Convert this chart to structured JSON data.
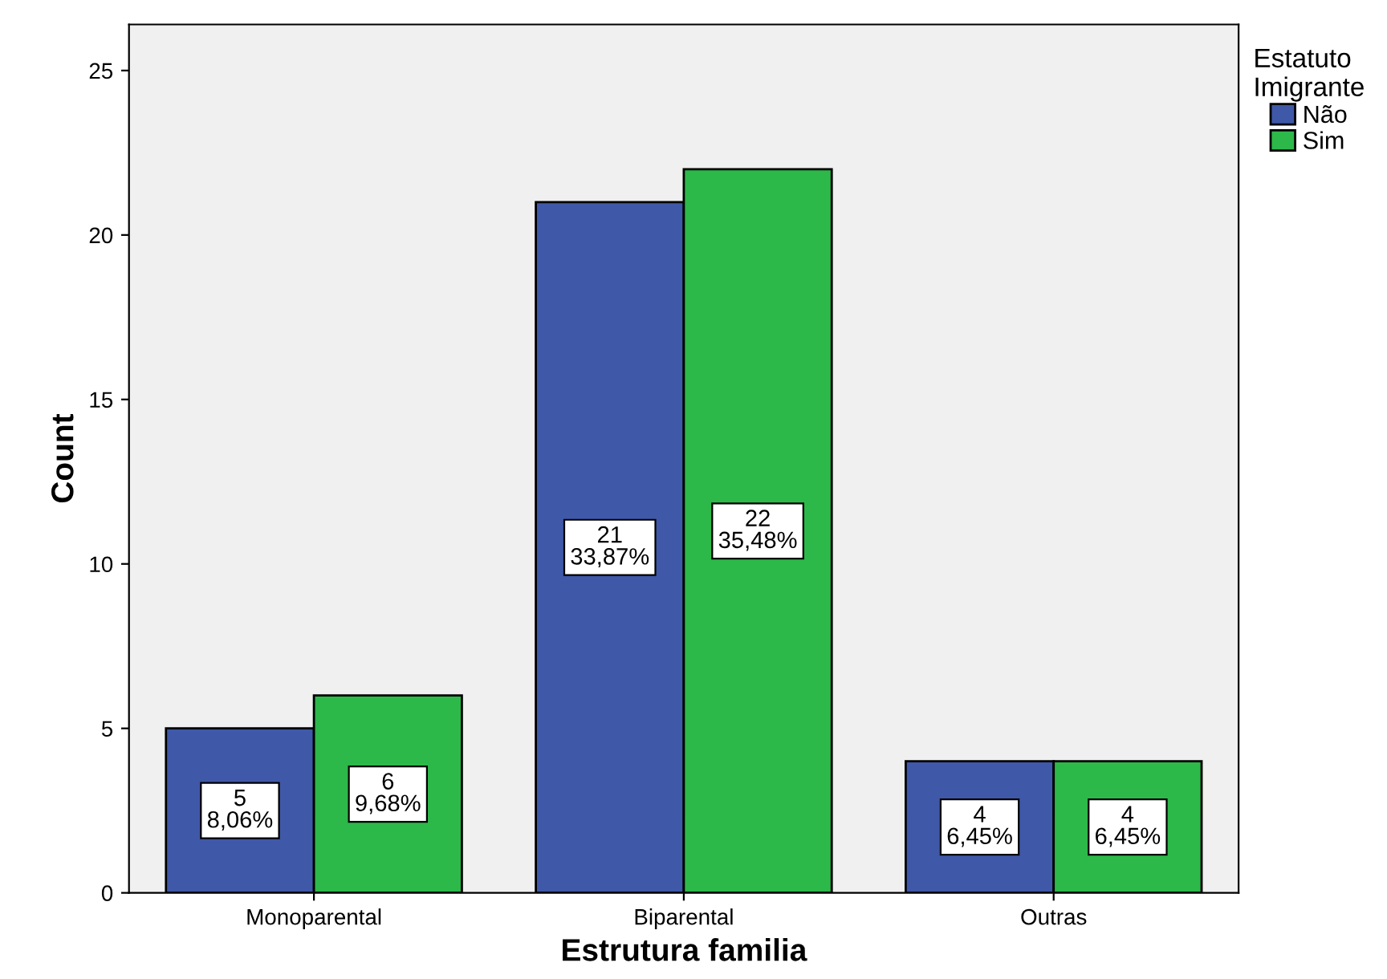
{
  "chart_data": {
    "type": "bar",
    "xlabel": "Estrutura familia",
    "ylabel": "Count",
    "legend_title": "Estatuto\nImigrante",
    "categories": [
      "Monoparental",
      "Biparental",
      "Outras"
    ],
    "series": [
      {
        "name": "Não",
        "color": "#3f58a8",
        "values": [
          5,
          21,
          4
        ],
        "value_labels": [
          "5\n8,06%",
          "21\n33,87%",
          "4\n6,45%"
        ]
      },
      {
        "name": "Sim",
        "color": "#2db84a",
        "values": [
          6,
          22,
          4
        ],
        "value_labels": [
          "6\n9,68%",
          "22\n35,48%",
          "4\n6,45%"
        ]
      }
    ],
    "ylim": [
      0,
      26.4
    ],
    "yticks": [
      0,
      5,
      10,
      15,
      20,
      25
    ],
    "grid": false,
    "legend": "top right"
  }
}
